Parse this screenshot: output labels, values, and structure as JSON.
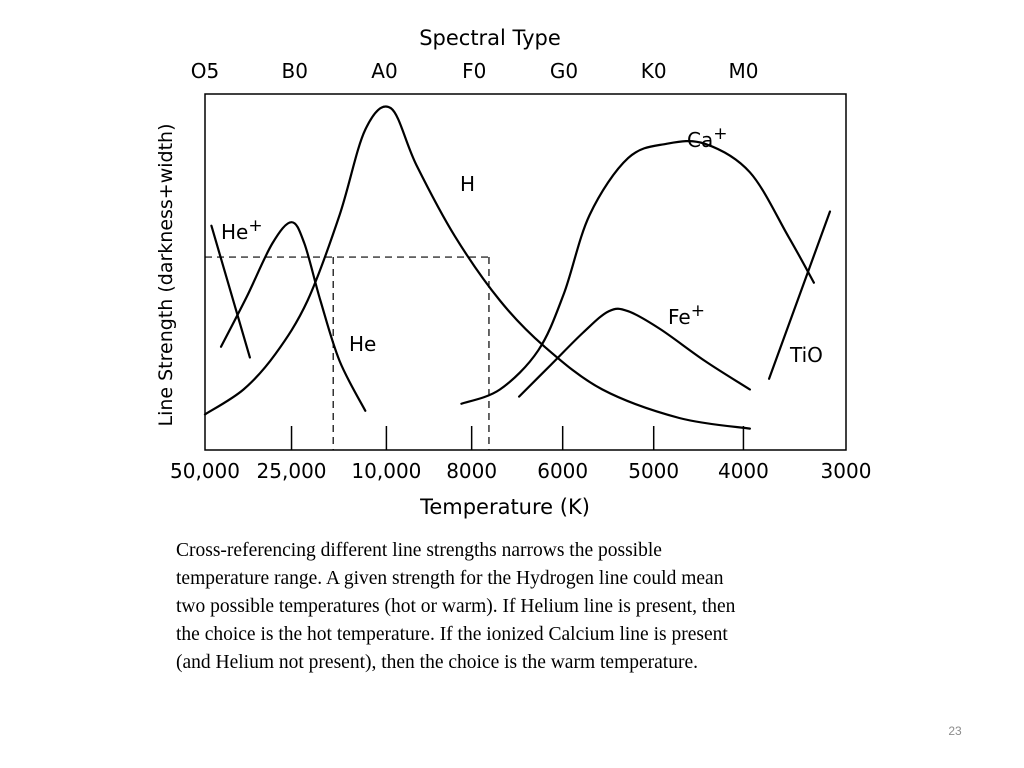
{
  "chart_data": {
    "type": "line",
    "title": "Spectral Type",
    "xlabel": "Temperature (K)",
    "ylabel": "Line Strength (darkness+width)",
    "top_axis_labels": [
      "O5",
      "B0",
      "A0",
      "F0",
      "G0",
      "K0",
      "M0"
    ],
    "bottom_axis_labels": [
      "50,000",
      "25,000",
      "10,000",
      "8000",
      "6000",
      "5000",
      "4000",
      "3000"
    ],
    "x_scale": "nonuniform temperature scale (labels as shown)",
    "ylim": [
      0,
      1
    ],
    "grid": false,
    "legend": "none (curves labeled inline)",
    "reference_lines": [
      {
        "kind": "horizontal",
        "y": 0.542
      },
      {
        "kind": "vertical",
        "x": "~17,000 K"
      },
      {
        "kind": "vertical",
        "x": "~7,500 K"
      }
    ],
    "series": [
      {
        "name": "He+",
        "label_parts": [
          "He",
          "+"
        ],
        "x": [
          0.01,
          0.07
        ],
        "y": [
          0.63,
          0.26
        ]
      },
      {
        "name": "He",
        "label_parts": [
          "He",
          ""
        ],
        "x": [
          0.025,
          0.065,
          0.105,
          0.135,
          0.155,
          0.18,
          0.21,
          0.25
        ],
        "y": [
          0.29,
          0.43,
          0.58,
          0.64,
          0.58,
          0.42,
          0.25,
          0.11
        ]
      },
      {
        "name": "H",
        "label_parts": [
          "H",
          ""
        ],
        "x": [
          0,
          0.06,
          0.11,
          0.16,
          0.21,
          0.25,
          0.29,
          0.33,
          0.39,
          0.46,
          0.53,
          0.62,
          0.74,
          0.85
        ],
        "y": [
          0.1,
          0.17,
          0.27,
          0.42,
          0.66,
          0.9,
          0.96,
          0.8,
          0.6,
          0.42,
          0.29,
          0.17,
          0.09,
          0.06
        ]
      },
      {
        "name": "Ca+",
        "label_parts": [
          "Ca",
          "+"
        ],
        "x": [
          0.4,
          0.46,
          0.52,
          0.56,
          0.6,
          0.66,
          0.72,
          0.78,
          0.85,
          0.91,
          0.95
        ],
        "y": [
          0.13,
          0.17,
          0.28,
          0.44,
          0.66,
          0.82,
          0.86,
          0.86,
          0.78,
          0.6,
          0.47
        ]
      },
      {
        "name": "Fe+",
        "label_parts": [
          "Fe",
          "+"
        ],
        "x": [
          0.49,
          0.54,
          0.59,
          0.63,
          0.66,
          0.71,
          0.78,
          0.85
        ],
        "y": [
          0.15,
          0.24,
          0.33,
          0.39,
          0.39,
          0.34,
          0.25,
          0.17
        ]
      },
      {
        "name": "TiO",
        "label_parts": [
          "TiO",
          ""
        ],
        "x": [
          0.88,
          0.975
        ],
        "y": [
          0.2,
          0.67
        ]
      }
    ]
  },
  "caption_lines": [
    "Cross-referencing different line strengths narrows the possible",
    "temperature range.  A given strength for the Hydrogen line could mean",
    "two possible temperatures (hot or warm).  If Helium line is present, then",
    "the choice is the hot temperature.  If the ionized Calcium line is present",
    "(and Helium not present), then the choice is the warm temperature."
  ],
  "slide_number": "23"
}
